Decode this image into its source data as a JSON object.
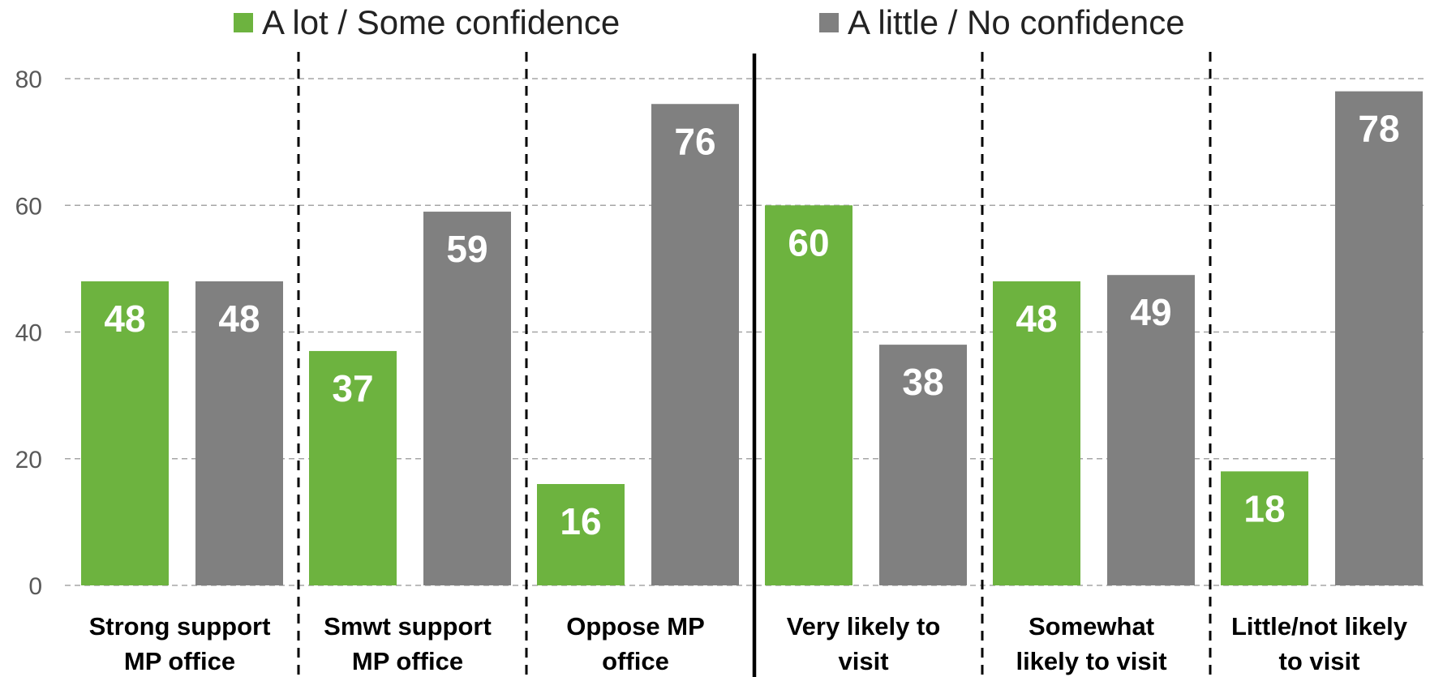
{
  "chart_data": {
    "type": "bar",
    "categories": [
      [
        "Strong support",
        "MP office"
      ],
      [
        "Smwt support",
        "MP office"
      ],
      [
        "Oppose MP",
        "office"
      ],
      [
        "Very likely to",
        "visit"
      ],
      [
        "Somewhat",
        "likely to visit"
      ],
      [
        "Little/not likely",
        "to visit"
      ]
    ],
    "series": [
      {
        "name": "A lot / Some confidence",
        "color": "#6db33f",
        "values": [
          48,
          37,
          16,
          60,
          48,
          18
        ]
      },
      {
        "name": "A little / No confidence",
        "color": "#808080",
        "values": [
          48,
          59,
          76,
          38,
          49,
          78
        ]
      }
    ],
    "yticks": [
      "0",
      "20",
      "40",
      "60",
      "80"
    ],
    "ylim": [
      0,
      80
    ],
    "grid": true,
    "legend_position": "top",
    "title": "",
    "xlabel": "",
    "ylabel": "",
    "group_divider_after_category": 3
  }
}
